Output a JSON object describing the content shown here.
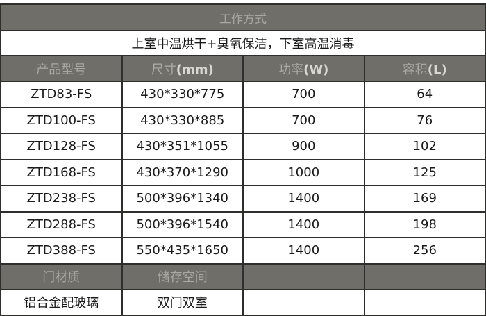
{
  "title": "工作方式",
  "mode": "上室中温烘干+臭氧保洁，下室高温消毒",
  "headers": [
    {
      "label": "产品型号",
      "unit": ""
    },
    {
      "label": "尺寸",
      "unit": "(mm)"
    },
    {
      "label": "功率",
      "unit": "(W)"
    },
    {
      "label": "容积",
      "unit": "(L)"
    }
  ],
  "rows": [
    [
      "ZTD83-FS",
      "430*330*775",
      "700",
      "64"
    ],
    [
      "ZTD100-FS",
      "430*330*885",
      "700",
      "76"
    ],
    [
      "ZTD128-FS",
      "430*351*1055",
      "900",
      "102"
    ],
    [
      "ZTD168-FS",
      "430*370*1290",
      "1000",
      "125"
    ],
    [
      "ZTD238-FS",
      "500*396*1340",
      "1400",
      "169"
    ],
    [
      "ZTD288-FS",
      "500*396*1540",
      "1400",
      "198"
    ],
    [
      "ZTD388-FS",
      "550*435*1650",
      "1400",
      "256"
    ]
  ],
  "footer_headers": [
    "门材质",
    "储存空间",
    "",
    ""
  ],
  "footer_values": [
    "铝合金配玻璃",
    "双门双室",
    "",
    ""
  ],
  "colors": {
    "header_bg": "#6f6e68",
    "header_text": "#a9a8a2",
    "border": "#2e2e2c"
  }
}
